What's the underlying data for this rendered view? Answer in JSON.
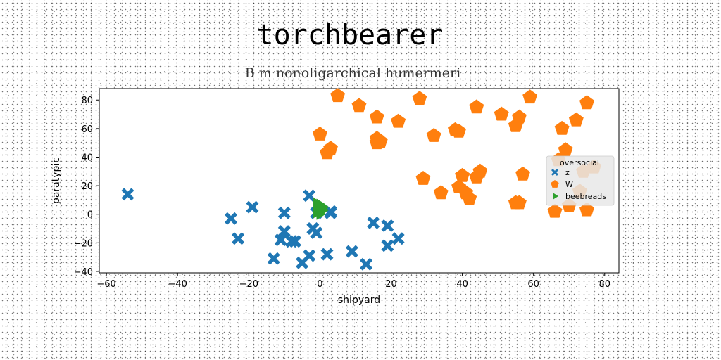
{
  "chart_data": {
    "type": "scatter",
    "title": "torchbearer",
    "subtitle": "B m nonoligarchical humermeri",
    "xlabel": "shipyard",
    "ylabel": "paratypic",
    "xlim": [
      -62,
      84
    ],
    "ylim": [
      -41,
      88
    ],
    "xticks": [
      -60,
      -40,
      -20,
      0,
      20,
      40,
      60,
      80
    ],
    "yticks": [
      -40,
      -20,
      0,
      20,
      40,
      60,
      80
    ],
    "xtick_labels": [
      "−60",
      "−40",
      "−20",
      "0",
      "20",
      "40",
      "60",
      "80"
    ],
    "ytick_labels": [
      "−40",
      "−20",
      "0",
      "20",
      "40",
      "60",
      "80"
    ],
    "grid": false,
    "legend": {
      "title": "oversocial",
      "placement": "right"
    },
    "series": [
      {
        "name": "z",
        "marker": "x",
        "color": "#1f77b4",
        "points": [
          [
            -54,
            14
          ],
          [
            -25,
            -3
          ],
          [
            -23,
            -17
          ],
          [
            -19,
            5
          ],
          [
            -13,
            -31
          ],
          [
            -11,
            -18
          ],
          [
            -10,
            1
          ],
          [
            -10,
            -12
          ],
          [
            -8,
            -19
          ],
          [
            -7,
            -19
          ],
          [
            -5,
            -34
          ],
          [
            -3,
            -29
          ],
          [
            -3,
            13
          ],
          [
            -2,
            -10
          ],
          [
            -1,
            -13
          ],
          [
            -1,
            1
          ],
          [
            2,
            -28
          ],
          [
            3,
            1
          ],
          [
            3,
            2
          ],
          [
            9,
            -26
          ],
          [
            13,
            -35
          ],
          [
            15,
            -6
          ],
          [
            19,
            -22
          ],
          [
            19,
            -8
          ],
          [
            22,
            -17
          ]
        ]
      },
      {
        "name": "W",
        "marker": "pentagon",
        "color": "#ff7f0e",
        "points": [
          [
            0,
            56
          ],
          [
            2,
            43
          ],
          [
            3,
            46
          ],
          [
            5,
            83
          ],
          [
            11,
            76
          ],
          [
            16,
            68
          ],
          [
            16,
            53
          ],
          [
            16,
            50
          ],
          [
            17,
            51
          ],
          [
            22,
            65
          ],
          [
            28,
            81
          ],
          [
            29,
            25
          ],
          [
            32,
            55
          ],
          [
            34,
            15
          ],
          [
            38,
            59
          ],
          [
            39,
            58
          ],
          [
            39,
            19
          ],
          [
            40,
            27
          ],
          [
            41,
            15
          ],
          [
            42,
            11
          ],
          [
            44,
            75
          ],
          [
            44,
            26
          ],
          [
            45,
            30
          ],
          [
            51,
            70
          ],
          [
            55,
            62
          ],
          [
            55,
            8
          ],
          [
            56,
            8
          ],
          [
            56,
            68
          ],
          [
            57,
            28
          ],
          [
            59,
            82
          ],
          [
            66,
            2
          ],
          [
            67,
            38
          ],
          [
            68,
            60
          ],
          [
            69,
            45
          ],
          [
            70,
            6
          ],
          [
            72,
            66
          ],
          [
            73,
            16
          ],
          [
            74,
            30
          ],
          [
            75,
            78
          ],
          [
            75,
            3
          ],
          [
            77,
            33
          ]
        ]
      },
      {
        "name": "beebreads",
        "marker": "triangle-right",
        "color": "#2ca02c",
        "points": [
          [
            -1,
            8
          ],
          [
            -1,
            6
          ],
          [
            -1,
            3
          ],
          [
            -1,
            1
          ],
          [
            0,
            7
          ],
          [
            0,
            5
          ],
          [
            0,
            3
          ],
          [
            0,
            1
          ],
          [
            0,
            0
          ],
          [
            1,
            5
          ],
          [
            1,
            3
          ]
        ]
      }
    ]
  }
}
